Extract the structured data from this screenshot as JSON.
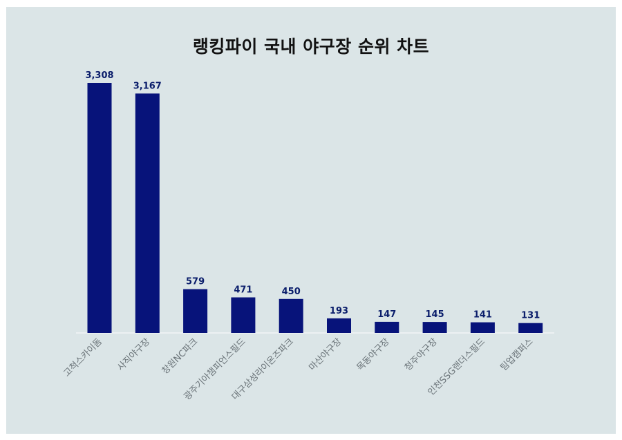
{
  "colors": {
    "background": "#dbe5e7",
    "bar": "#07137a",
    "value_label": "#0a1d6b",
    "category_label": "#6a7378",
    "title": "#111111"
  },
  "chart_data": {
    "type": "bar",
    "title": "랭킹파이 국내 야구장 순위 차트",
    "xlabel": "",
    "ylabel": "",
    "categories": [
      "고척스카이돔",
      "사직야구장",
      "창원NC파크",
      "광주기아챔피언스필드",
      "대구삼성라이온즈파크",
      "마산야구장",
      "목동야구장",
      "청주야구장",
      "인천SSG랜더스필드",
      "팀업캠퍼스"
    ],
    "values": [
      3308,
      3167,
      579,
      471,
      450,
      193,
      147,
      145,
      141,
      131
    ],
    "value_labels": [
      "3,308",
      "3,167",
      "579",
      "471",
      "450",
      "193",
      "147",
      "145",
      "141",
      "131"
    ],
    "ylim": [
      0,
      3308
    ],
    "grid": false,
    "legend": "none"
  }
}
